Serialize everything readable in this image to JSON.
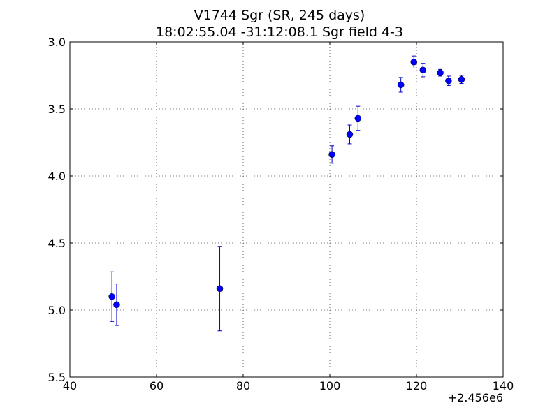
{
  "chart_data": {
    "type": "scatter",
    "title": "V1744 Sgr  (SR, 245 days)",
    "subtitle": "18:02:55.04 -31:12:08.1 Sgr field 4-3",
    "xlabel": "",
    "ylabel": "",
    "x_offset_label": "+2.456e6",
    "xlim": [
      40,
      140
    ],
    "ylim": [
      3.0,
      5.5
    ],
    "y_inverted": true,
    "x_ticks": [
      40,
      60,
      80,
      100,
      120,
      140
    ],
    "x_tick_labels": [
      "40",
      "60",
      "80",
      "100",
      "120",
      "140"
    ],
    "y_ticks": [
      3.0,
      3.5,
      4.0,
      4.5,
      5.0,
      5.5
    ],
    "y_tick_labels": [
      "3.0",
      "3.5",
      "4.0",
      "4.5",
      "5.0",
      "5.5"
    ],
    "grid": true,
    "grid_style": "dotted",
    "legend": false,
    "marker_color": "#0000ff",
    "error_color": "#0000cc",
    "points": [
      {
        "x": 49.7,
        "y": 4.9,
        "err": 0.185
      },
      {
        "x": 50.8,
        "y": 4.96,
        "err": 0.155
      },
      {
        "x": 74.6,
        "y": 4.84,
        "err": 0.315
      },
      {
        "x": 100.5,
        "y": 3.84,
        "err": 0.065
      },
      {
        "x": 104.6,
        "y": 3.69,
        "err": 0.07
      },
      {
        "x": 106.5,
        "y": 3.57,
        "err": 0.09
      },
      {
        "x": 116.4,
        "y": 3.32,
        "err": 0.055
      },
      {
        "x": 119.4,
        "y": 3.15,
        "err": 0.045
      },
      {
        "x": 121.5,
        "y": 3.21,
        "err": 0.05
      },
      {
        "x": 125.5,
        "y": 3.23,
        "err": 0.025
      },
      {
        "x": 127.4,
        "y": 3.29,
        "err": 0.035
      },
      {
        "x": 130.4,
        "y": 3.28,
        "err": 0.03
      }
    ]
  }
}
